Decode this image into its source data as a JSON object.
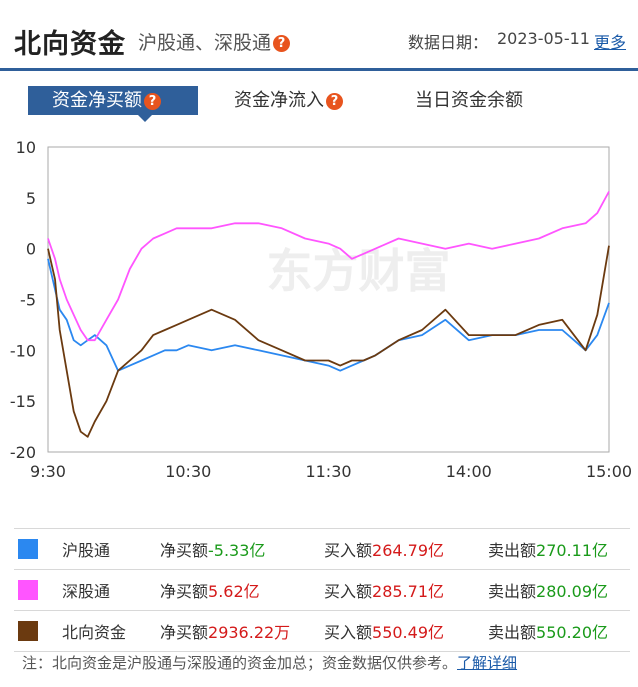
{
  "header": {
    "title": "北向资金",
    "subtitle": "沪股通、深股通",
    "help_glyph": "?",
    "date_label": "数据日期：",
    "date": "2023-05-11",
    "more_link": "更多"
  },
  "tabs": [
    {
      "label": "资金净买额",
      "active": true,
      "help": true
    },
    {
      "label": "资金净流入",
      "active": false,
      "help": true
    },
    {
      "label": "当日资金余额",
      "active": false,
      "help": false
    }
  ],
  "chart_data": {
    "type": "line",
    "x_ticks": [
      "9:30",
      "10:30",
      "11:30",
      "14:00",
      "15:00"
    ],
    "ylim": [
      -20,
      10
    ],
    "y_ticks": [
      10,
      5,
      0,
      -5,
      -10,
      -15,
      -20
    ],
    "watermark": "东方财富",
    "grid": false,
    "series": [
      {
        "name": "沪股通",
        "color": "#2b88f0",
        "x": [
          0,
          3,
          5,
          8,
          11,
          14,
          17,
          20,
          25,
          30,
          35,
          40,
          45,
          50,
          55,
          60,
          70,
          80,
          90,
          100,
          110,
          120,
          125,
          130,
          135,
          140,
          150,
          160,
          170,
          180,
          190,
          200,
          210,
          220,
          230,
          235,
          240
        ],
        "y": [
          -1,
          -4,
          -6,
          -7,
          -9,
          -9.5,
          -9,
          -8.5,
          -9.5,
          -12,
          -11.5,
          -11,
          -10.5,
          -10,
          -10,
          -9.5,
          -10,
          -9.5,
          -10,
          -10.5,
          -11,
          -11.5,
          -12,
          -11.5,
          -11,
          -10.5,
          -9,
          -8.5,
          -7,
          -9,
          -8.5,
          -8.5,
          -8,
          -8,
          -10,
          -8.5,
          -5.33
        ]
      },
      {
        "name": "深股通",
        "color": "#ff55ff",
        "x": [
          0,
          3,
          5,
          8,
          11,
          14,
          17,
          20,
          25,
          30,
          35,
          40,
          45,
          50,
          55,
          60,
          70,
          80,
          90,
          100,
          110,
          120,
          125,
          130,
          135,
          140,
          150,
          160,
          170,
          180,
          190,
          200,
          210,
          220,
          230,
          235,
          240
        ],
        "y": [
          1,
          -1,
          -3,
          -5,
          -6.5,
          -8,
          -9,
          -9,
          -7,
          -5,
          -2,
          0,
          1,
          1.5,
          2,
          2,
          2,
          2.5,
          2.5,
          2,
          1,
          0.5,
          0,
          -1,
          -0.5,
          0,
          1,
          0.5,
          0,
          0.5,
          0,
          0.5,
          1,
          2,
          2.5,
          3.5,
          5.62
        ]
      },
      {
        "name": "北向资金",
        "color": "#6b3a10",
        "x": [
          0,
          3,
          5,
          8,
          11,
          14,
          17,
          20,
          25,
          30,
          35,
          40,
          45,
          50,
          55,
          60,
          70,
          80,
          90,
          100,
          110,
          120,
          125,
          130,
          135,
          140,
          150,
          160,
          170,
          180,
          190,
          200,
          210,
          220,
          230,
          235,
          240
        ],
        "y": [
          0,
          -3,
          -8,
          -12,
          -16,
          -18,
          -18.5,
          -17,
          -15,
          -12,
          -11,
          -10,
          -8.5,
          -8,
          -7.5,
          -7,
          -6,
          -7,
          -9,
          -10,
          -11,
          -11,
          -11.5,
          -11,
          -11,
          -10.5,
          -9,
          -8,
          -6,
          -8.5,
          -8.5,
          -8.5,
          -7.5,
          -7,
          -10,
          -6.5,
          0.29
        ]
      }
    ]
  },
  "legend": [
    {
      "name": "沪股通",
      "color": "#2b88f0",
      "net_label": "净买额",
      "net": "-5.33亿",
      "net_color": "green",
      "buy_label": "买入额",
      "buy": "264.79亿",
      "sell_label": "卖出额",
      "sell": "270.11亿"
    },
    {
      "name": "深股通",
      "color": "#ff55ff",
      "net_label": "净买额",
      "net": "5.62亿",
      "net_color": "red",
      "buy_label": "买入额",
      "buy": "285.71亿",
      "sell_label": "卖出额",
      "sell": "280.09亿"
    },
    {
      "name": "北向资金",
      "color": "#6b3a10",
      "net_label": "净买额",
      "net": "2936.22万",
      "net_color": "red",
      "buy_label": "买入额",
      "buy": "550.49亿",
      "sell_label": "卖出额",
      "sell": "550.20亿"
    }
  ],
  "note": {
    "text": "注：北向资金是沪股通与深股通的资金加总；资金数据仅供参考。",
    "link": "了解详细"
  }
}
